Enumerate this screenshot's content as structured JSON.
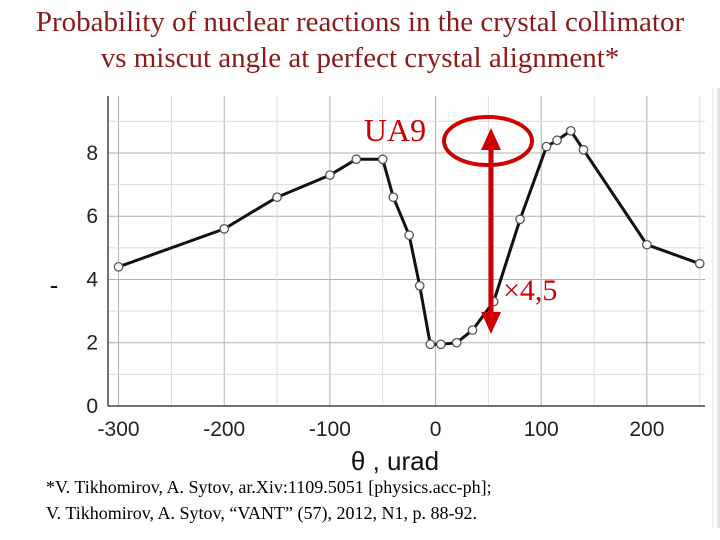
{
  "title": {
    "line1": "Probability of nuclear reactions in the crystal collimator",
    "line2": "vs miscut angle at perfect crystal alignment*"
  },
  "colors": {
    "title": "#8b1a1a",
    "annotation": "#cc0000",
    "curve": "#111111",
    "grid": "#b0b0b0"
  },
  "chart_data": {
    "type": "line",
    "xlabel": "θ , urad",
    "ylabel": "-",
    "xlim": [
      -310,
      255
    ],
    "ylim": [
      0,
      9.8
    ],
    "xticks": [
      -300,
      -200,
      -100,
      0,
      100,
      200
    ],
    "yticks": [
      0,
      2,
      4,
      6,
      8
    ],
    "grid": true,
    "x_tick_labels": [
      "-300",
      "-200",
      "-100",
      "0",
      "100",
      "200"
    ],
    "y_tick_labels": [
      "0",
      "2",
      "4",
      "6",
      "8"
    ],
    "series": [
      {
        "x": [
          -300,
          -200,
          -150,
          -100,
          -75,
          -50,
          -40,
          -25,
          -15,
          -5,
          5,
          20,
          35,
          55,
          80,
          105,
          115,
          128,
          140,
          200,
          250
        ],
        "y": [
          4.4,
          5.6,
          6.6,
          7.3,
          7.8,
          7.8,
          6.6,
          5.4,
          3.8,
          1.95,
          1.95,
          2.0,
          2.4,
          3.3,
          5.9,
          8.2,
          8.4,
          8.7,
          8.1,
          5.1,
          4.5
        ]
      }
    ],
    "annotations": [
      {
        "text": "UA9"
      },
      {
        "text": "×4,5"
      }
    ]
  },
  "reference": {
    "line1": "*V. Tikhomirov, A. Sytov, ar.Xiv:1109.5051 [physics.acc-ph];",
    "line2": " V. Tikhomirov, A. Sytov, “VANT” (57), 2012, N1, p. 88-92."
  }
}
